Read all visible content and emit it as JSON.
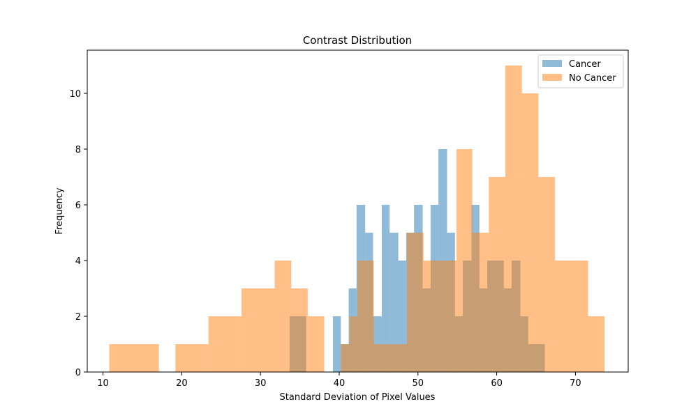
{
  "chart_data": {
    "type": "histogram",
    "title": "Contrast Distribution",
    "xlabel": "Standard Deviation of Pixel Values",
    "ylabel": "Frequency",
    "xlim": [
      8,
      76.7
    ],
    "ylim": [
      0,
      11.55
    ],
    "xticks": [
      10,
      20,
      30,
      40,
      50,
      60,
      70
    ],
    "yticks": [
      0,
      2,
      4,
      6,
      8,
      10
    ],
    "legend_position": "top-right",
    "grid": false,
    "series": [
      {
        "name": "Cancer",
        "color": "#1f77b4",
        "opacity": 0.5,
        "bins": [
          {
            "x0": 33.7,
            "x1": 35.8,
            "count": 2
          },
          {
            "x0": 39.2,
            "x1": 40.2,
            "count": 2
          },
          {
            "x0": 40.2,
            "x1": 41.2,
            "count": 1
          },
          {
            "x0": 41.2,
            "x1": 42.2,
            "count": 3
          },
          {
            "x0": 42.2,
            "x1": 43.3,
            "count": 6
          },
          {
            "x0": 43.3,
            "x1": 44.3,
            "count": 5
          },
          {
            "x0": 44.3,
            "x1": 45.4,
            "count": 2
          },
          {
            "x0": 45.4,
            "x1": 46.4,
            "count": 6
          },
          {
            "x0": 46.4,
            "x1": 47.5,
            "count": 5
          },
          {
            "x0": 47.5,
            "x1": 48.5,
            "count": 4
          },
          {
            "x0": 48.5,
            "x1": 49.5,
            "count": 5
          },
          {
            "x0": 49.5,
            "x1": 50.6,
            "count": 6
          },
          {
            "x0": 50.6,
            "x1": 51.6,
            "count": 3
          },
          {
            "x0": 51.6,
            "x1": 52.6,
            "count": 6
          },
          {
            "x0": 52.6,
            "x1": 53.7,
            "count": 8
          },
          {
            "x0": 53.7,
            "x1": 54.7,
            "count": 5
          },
          {
            "x0": 54.7,
            "x1": 55.7,
            "count": 2
          },
          {
            "x0": 55.7,
            "x1": 56.8,
            "count": 4
          },
          {
            "x0": 56.8,
            "x1": 57.8,
            "count": 6
          },
          {
            "x0": 57.8,
            "x1": 58.8,
            "count": 3
          },
          {
            "x0": 58.8,
            "x1": 59.9,
            "count": 4
          },
          {
            "x0": 59.9,
            "x1": 60.9,
            "count": 4
          },
          {
            "x0": 60.9,
            "x1": 61.9,
            "count": 3
          },
          {
            "x0": 61.9,
            "x1": 63.0,
            "count": 4
          },
          {
            "x0": 63.0,
            "x1": 64.0,
            "count": 2
          },
          {
            "x0": 64.0,
            "x1": 66.1,
            "count": 1
          }
        ]
      },
      {
        "name": "No Cancer",
        "color": "#ff7f0e",
        "opacity": 0.5,
        "bins": [
          {
            "x0": 10.8,
            "x1": 17.1,
            "count": 1
          },
          {
            "x0": 19.2,
            "x1": 23.4,
            "count": 1
          },
          {
            "x0": 23.4,
            "x1": 27.6,
            "count": 2
          },
          {
            "x0": 27.6,
            "x1": 31.8,
            "count": 3
          },
          {
            "x0": 31.8,
            "x1": 33.9,
            "count": 4
          },
          {
            "x0": 33.9,
            "x1": 36.0,
            "count": 3
          },
          {
            "x0": 36.0,
            "x1": 38.1,
            "count": 2
          },
          {
            "x0": 40.2,
            "x1": 41.3,
            "count": 1
          },
          {
            "x0": 41.3,
            "x1": 42.3,
            "count": 2
          },
          {
            "x0": 42.3,
            "x1": 44.4,
            "count": 4
          },
          {
            "x0": 44.4,
            "x1": 48.6,
            "count": 1
          },
          {
            "x0": 48.6,
            "x1": 50.7,
            "count": 5
          },
          {
            "x0": 50.7,
            "x1": 52.8,
            "count": 4
          },
          {
            "x0": 52.8,
            "x1": 54.9,
            "count": 4
          },
          {
            "x0": 54.9,
            "x1": 56.9,
            "count": 8
          },
          {
            "x0": 56.9,
            "x1": 59.0,
            "count": 5
          },
          {
            "x0": 59.0,
            "x1": 61.1,
            "count": 7
          },
          {
            "x0": 61.1,
            "x1": 63.2,
            "count": 11
          },
          {
            "x0": 63.2,
            "x1": 65.3,
            "count": 10
          },
          {
            "x0": 65.3,
            "x1": 67.4,
            "count": 7
          },
          {
            "x0": 67.4,
            "x1": 71.6,
            "count": 4
          },
          {
            "x0": 71.6,
            "x1": 73.7,
            "count": 2
          }
        ]
      }
    ]
  }
}
